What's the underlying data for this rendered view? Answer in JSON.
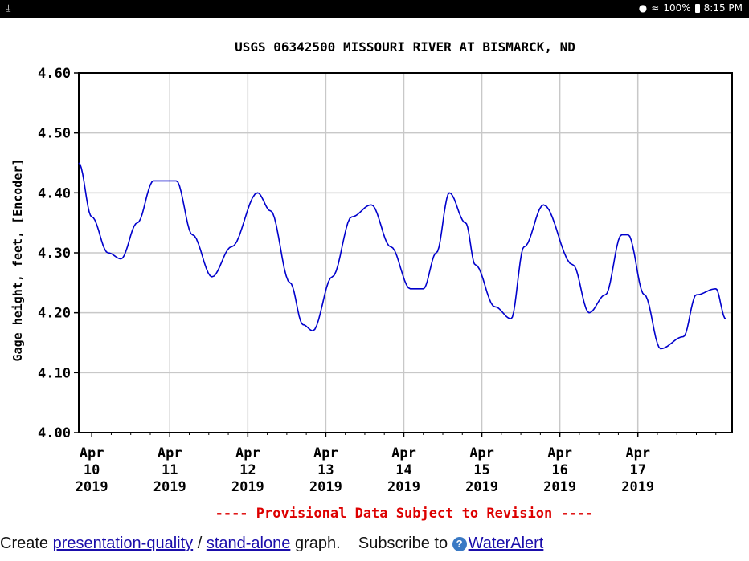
{
  "status_bar": {
    "download_icon": "download-arrow-icon",
    "battery": "100%",
    "time": "8:15 PM"
  },
  "graph": {
    "title": "USGS 06342500 MISSOURI RIVER AT BISMARCK, ND",
    "ylabel": "Gage height, feet, [Encoder]",
    "provisional_note": "---- Provisional Data Subject to Revision ----",
    "y_ticks": [
      "4.60",
      "4.50",
      "4.40",
      "4.30",
      "4.20",
      "4.10",
      "4.00"
    ],
    "x_ticks": [
      {
        "month": "Apr",
        "day": "10",
        "year": "2019"
      },
      {
        "month": "Apr",
        "day": "11",
        "year": "2019"
      },
      {
        "month": "Apr",
        "day": "12",
        "year": "2019"
      },
      {
        "month": "Apr",
        "day": "13",
        "year": "2019"
      },
      {
        "month": "Apr",
        "day": "14",
        "year": "2019"
      },
      {
        "month": "Apr",
        "day": "15",
        "year": "2019"
      },
      {
        "month": "Apr",
        "day": "16",
        "year": "2019"
      },
      {
        "month": "Apr",
        "day": "17",
        "year": "2019"
      }
    ],
    "line_color": "#0000cc",
    "note_color": "#dd0000"
  },
  "chart_data": {
    "type": "line",
    "title": "USGS 06342500 MISSOURI RIVER AT BISMARCK, ND",
    "ylabel": "Gage height, feet, [Encoder]",
    "ylim": [
      4.0,
      4.6
    ],
    "xlim": [
      "2019-04-09T20:00",
      "2019-04-18T05:00"
    ],
    "grid": true,
    "legend": "none",
    "series": [
      {
        "x": [
          "2019-04-09T20:00",
          "2019-04-10T00:00",
          "2019-04-10T05:00",
          "2019-04-10T09:00",
          "2019-04-10T14:00",
          "2019-04-10T19:00",
          "2019-04-11T02:00",
          "2019-04-11T07:00",
          "2019-04-11T13:00",
          "2019-04-11T19:00",
          "2019-04-12T03:00",
          "2019-04-12T07:00",
          "2019-04-12T13:00",
          "2019-04-12T17:00",
          "2019-04-12T20:00",
          "2019-04-13T02:00",
          "2019-04-13T08:00",
          "2019-04-13T14:00",
          "2019-04-13T20:00",
          "2019-04-14T02:00",
          "2019-04-14T06:00",
          "2019-04-14T10:00",
          "2019-04-14T14:00",
          "2019-04-14T19:00",
          "2019-04-14T22:00",
          "2019-04-15T04:00",
          "2019-04-15T09:00",
          "2019-04-15T13:00",
          "2019-04-15T19:00",
          "2019-04-16T04:00",
          "2019-04-16T09:00",
          "2019-04-16T14:00",
          "2019-04-16T19:00",
          "2019-04-16T21:00",
          "2019-04-17T02:00",
          "2019-04-17T07:00",
          "2019-04-17T14:00",
          "2019-04-17T18:00",
          "2019-04-18T00:00",
          "2019-04-18T03:00"
        ],
        "y": [
          4.45,
          4.36,
          4.3,
          4.29,
          4.35,
          4.42,
          4.42,
          4.33,
          4.26,
          4.31,
          4.4,
          4.37,
          4.25,
          4.18,
          4.17,
          4.26,
          4.36,
          4.38,
          4.31,
          4.24,
          4.24,
          4.3,
          4.4,
          4.35,
          4.28,
          4.21,
          4.19,
          4.31,
          4.38,
          4.28,
          4.2,
          4.23,
          4.33,
          4.33,
          4.23,
          4.14,
          4.16,
          4.23,
          4.24,
          4.19
        ]
      }
    ]
  },
  "footer": {
    "create_text": "Create",
    "presentation_link": "presentation-quality",
    "separator": "/",
    "standalone_link": "stand-alone",
    "graph_text": "graph.",
    "subscribe_text": "Subscribe to",
    "help_icon": "help-question-icon",
    "help_glyph": "?",
    "wateralert_link": "WaterAlert"
  }
}
